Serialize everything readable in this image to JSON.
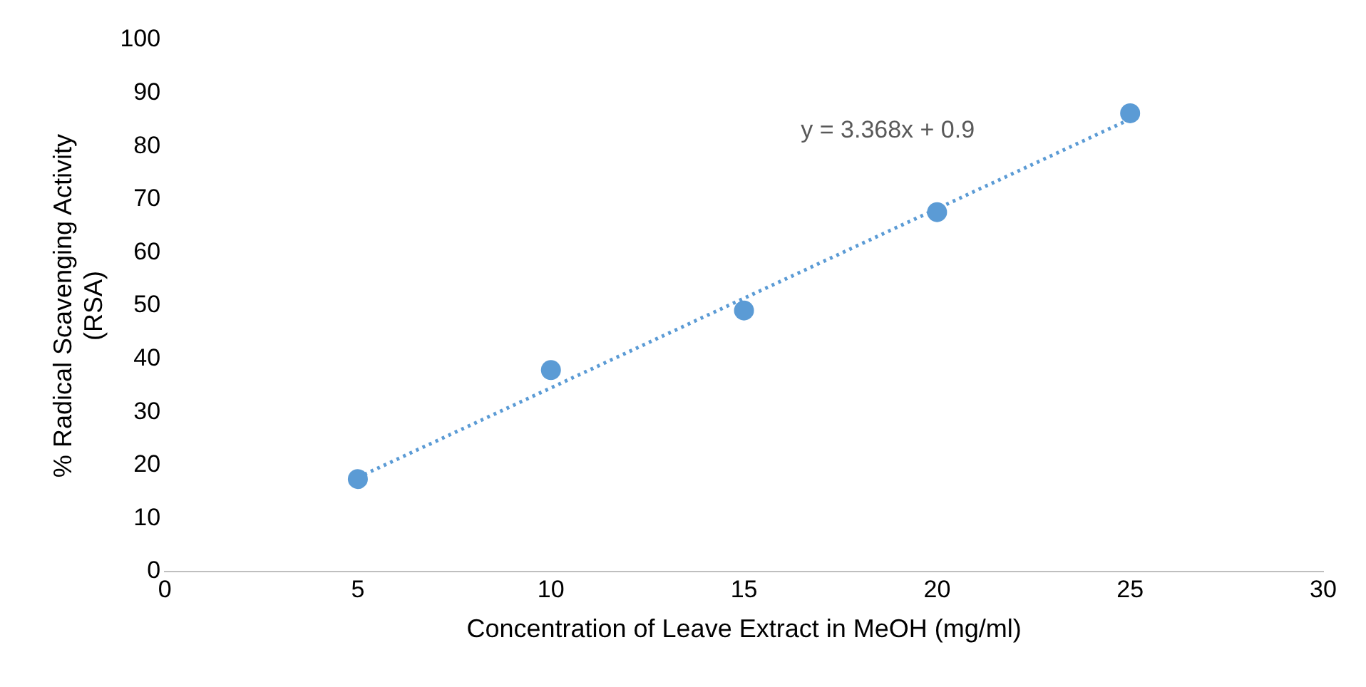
{
  "chart_data": {
    "type": "scatter",
    "xlabel": "Concentration of Leave Extract in MeOH (mg/ml)",
    "ylabel": "% Radical Scavenging Activity\n(RSA)",
    "series": [
      {
        "type": "scatter",
        "color": "#5b9bd5",
        "x": [
          5,
          10,
          15,
          20,
          25
        ],
        "values": [
          17.4,
          37.9,
          49.1,
          67.6,
          86.2
        ],
        "marker": "circle"
      },
      {
        "type": "line",
        "color": "#5b9bd5",
        "x": [
          5,
          25
        ],
        "values": [
          17.7,
          85.1
        ],
        "line_style": "dotted",
        "marker": "none"
      }
    ],
    "annotations": [
      "y = 3.368x + 0.9"
    ],
    "xlim": [
      0,
      30
    ],
    "xticks": [
      0,
      5,
      10,
      15,
      20,
      25,
      30
    ],
    "ylim": [
      0,
      100
    ],
    "yticks": [
      0,
      10,
      20,
      30,
      40,
      50,
      60,
      70,
      80,
      90,
      100
    ],
    "grid": false,
    "legend": false
  }
}
